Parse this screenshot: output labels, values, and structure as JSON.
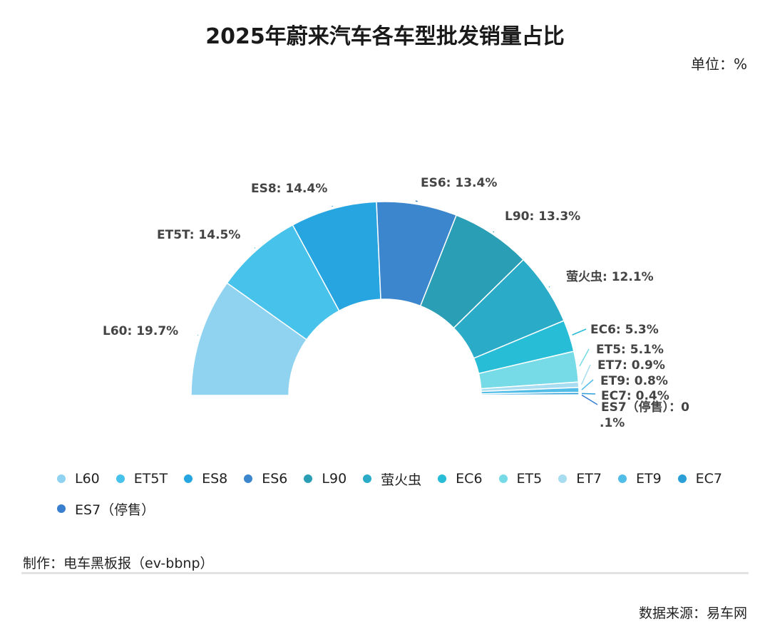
{
  "chart_data": {
    "type": "pie",
    "variant": "half-donut",
    "title": "2025年蔚来汽车各车型批发销量占比",
    "unit_label": "单位：%",
    "slices": [
      {
        "name": "L60",
        "value": 19.7,
        "label": "L60: 19.7%",
        "color": "#8fd3f0"
      },
      {
        "name": "ET5T",
        "value": 14.5,
        "label": "ET5T: 14.5%",
        "color": "#47c2ea"
      },
      {
        "name": "ES8",
        "value": 14.4,
        "label": "ES8: 14.4%",
        "color": "#27a5e0"
      },
      {
        "name": "ES6",
        "value": 13.4,
        "label": "ES6: 13.4%",
        "color": "#3b86cc"
      },
      {
        "name": "L90",
        "value": 13.3,
        "label": "L90: 13.3%",
        "color": "#2a9eb5"
      },
      {
        "name": "萤火虫",
        "value": 12.1,
        "label": "萤火虫: 12.1%",
        "color": "#2aabc8"
      },
      {
        "name": "EC6",
        "value": 5.3,
        "label": "EC6: 5.3%",
        "color": "#27bdd6"
      },
      {
        "name": "ET5",
        "value": 5.1,
        "label": "ET5: 5.1%",
        "color": "#76dbe6"
      },
      {
        "name": "ET7",
        "value": 0.9,
        "label": "ET7: 0.9%",
        "color": "#a8dcf0"
      },
      {
        "name": "ET9",
        "value": 0.8,
        "label": "ET9: 0.8%",
        "color": "#52bde6"
      },
      {
        "name": "EC7",
        "value": 0.4,
        "label": "EC7: 0.4%",
        "color": "#2b9ed8"
      },
      {
        "name": "ES7（停售）",
        "value": 0.1,
        "label_line1": "ES7（停售）：0",
        "label_line2": ".1%",
        "color": "#3a7fcf"
      }
    ],
    "legend_position": "bottom"
  },
  "footer": {
    "credit": "制作：电车黑板报（ev-bbnp）",
    "source": "数据来源：易车网"
  }
}
